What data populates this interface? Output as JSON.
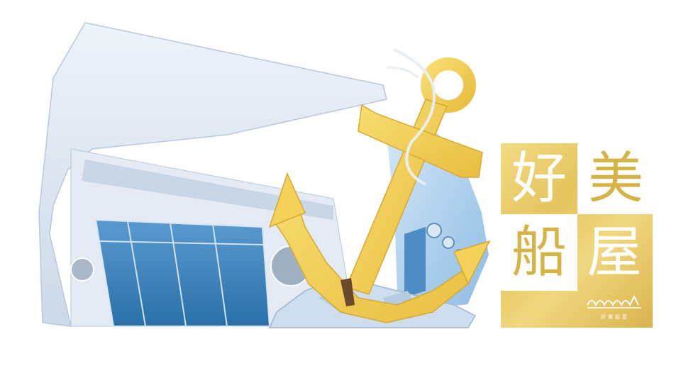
{
  "logo": {
    "char_1": "好",
    "char_2": "美",
    "char_3": "船",
    "char_4": "屋",
    "caption": "好美船屋"
  },
  "colors": {
    "gold": "#e4c45d",
    "gold_dark": "#d7b246",
    "building_wall": "#dfe8f3",
    "glass_blue": "#2f78b3",
    "ship_blue": "#9fc6e8",
    "anchor_gold": "#f1cf55"
  }
}
